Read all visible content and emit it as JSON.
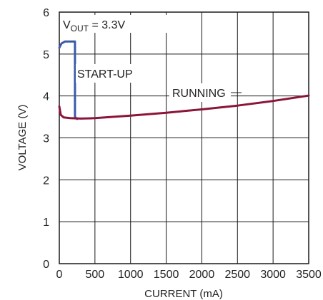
{
  "chart_data": {
    "type": "line",
    "title": "",
    "xlabel": "CURRENT (mA)",
    "ylabel": "VOLTAGE (V)",
    "xlim": [
      0,
      3500
    ],
    "ylim": [
      0,
      6
    ],
    "x_ticks": [
      0,
      500,
      1000,
      1500,
      2000,
      2500,
      3000,
      3500
    ],
    "y_ticks": [
      0,
      1,
      2,
      3,
      4,
      5,
      6
    ],
    "grid": true,
    "annotations": {
      "vout_main": "V",
      "vout_sub": "OUT",
      "vout_rest": " = 3.3V",
      "startup": "START-UP",
      "running": "RUNNING"
    },
    "series": [
      {
        "key": "startup",
        "color": "#3a5ba8",
        "points": [
          [
            0,
            5.15
          ],
          [
            30,
            5.25
          ],
          [
            80,
            5.3
          ],
          [
            200,
            5.3
          ],
          [
            220,
            5.3
          ],
          [
            220,
            3.5
          ],
          [
            250,
            3.45
          ]
        ]
      },
      {
        "key": "running",
        "color": "#8b1538",
        "points": [
          [
            0,
            3.75
          ],
          [
            20,
            3.55
          ],
          [
            60,
            3.49
          ],
          [
            150,
            3.47
          ],
          [
            300,
            3.46
          ],
          [
            500,
            3.47
          ],
          [
            1000,
            3.53
          ],
          [
            1500,
            3.6
          ],
          [
            2000,
            3.68
          ],
          [
            2500,
            3.77
          ],
          [
            3000,
            3.88
          ],
          [
            3500,
            4.01
          ]
        ]
      }
    ]
  }
}
